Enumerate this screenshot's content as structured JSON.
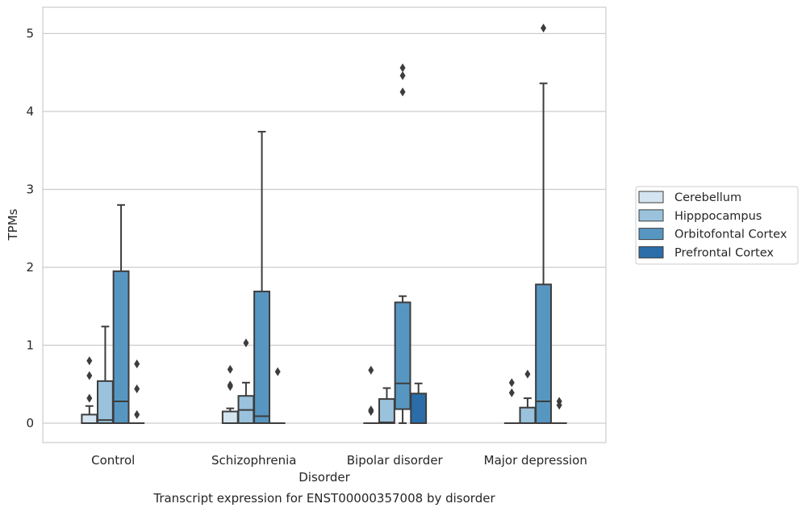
{
  "chart_data": {
    "type": "box",
    "title": "",
    "caption": "Transcript expression for ENST00000357008 by disorder",
    "xlabel": "Disorder",
    "ylabel": "TPMs",
    "ylim": [
      -0.25,
      5.35
    ],
    "yticks": [
      0,
      1,
      2,
      3,
      4,
      5
    ],
    "grid": true,
    "legend_position": "right",
    "categories": [
      "Control",
      "Schizophrenia",
      "Bipolar disorder",
      "Major depression"
    ],
    "series": [
      {
        "name": "Cerebellum",
        "color": "#d4e4f1",
        "boxes": [
          {
            "q1": 0,
            "median": 0,
            "q3": 0.11,
            "whisker_low": 0,
            "whisker_high": 0.22,
            "outliers": [
              0.32,
              0.61,
              0.8
            ]
          },
          {
            "q1": 0,
            "median": 0,
            "q3": 0.15,
            "whisker_low": 0,
            "whisker_high": 0.19,
            "outliers": [
              0.47,
              0.49,
              0.69
            ]
          },
          {
            "q1": 0,
            "median": 0,
            "q3": 0,
            "whisker_low": 0,
            "whisker_high": 0,
            "outliers": [
              0.15,
              0.17,
              0.68
            ]
          },
          {
            "q1": 0,
            "median": 0,
            "q3": 0,
            "whisker_low": 0,
            "whisker_high": 0,
            "outliers": [
              0.39,
              0.52
            ]
          }
        ]
      },
      {
        "name": "Hipppocampus",
        "color": "#9ac2dc",
        "boxes": [
          {
            "q1": 0,
            "median": 0.04,
            "q3": 0.54,
            "whisker_low": 0,
            "whisker_high": 1.24,
            "outliers": []
          },
          {
            "q1": 0,
            "median": 0.17,
            "q3": 0.35,
            "whisker_low": 0,
            "whisker_high": 0.52,
            "outliers": [
              1.03
            ]
          },
          {
            "q1": 0,
            "median": 0.01,
            "q3": 0.31,
            "whisker_low": 0,
            "whisker_high": 0.45,
            "outliers": []
          },
          {
            "q1": 0,
            "median": 0,
            "q3": 0.2,
            "whisker_low": 0,
            "whisker_high": 0.32,
            "outliers": [
              0.63
            ]
          }
        ]
      },
      {
        "name": "Orbitofontal Cortex",
        "color": "#5896c2",
        "boxes": [
          {
            "q1": 0,
            "median": 0.28,
            "q3": 1.95,
            "whisker_low": 0,
            "whisker_high": 2.8,
            "outliers": []
          },
          {
            "q1": 0,
            "median": 0.09,
            "q3": 1.69,
            "whisker_low": 0,
            "whisker_high": 3.74,
            "outliers": []
          },
          {
            "q1": 0.18,
            "median": 0.51,
            "q3": 1.55,
            "whisker_low": 0,
            "whisker_high": 1.63,
            "outliers": [
              4.25,
              4.46,
              4.56
            ]
          },
          {
            "q1": 0,
            "median": 0.28,
            "q3": 1.78,
            "whisker_low": 0,
            "whisker_high": 4.36,
            "outliers": [
              5.07
            ]
          }
        ]
      },
      {
        "name": "Prefrontal Cortex",
        "color": "#2b6da8",
        "boxes": [
          {
            "q1": 0,
            "median": 0,
            "q3": 0,
            "whisker_low": 0,
            "whisker_high": 0,
            "outliers": [
              0.11,
              0.44,
              0.76
            ]
          },
          {
            "q1": 0,
            "median": 0,
            "q3": 0,
            "whisker_low": 0,
            "whisker_high": 0,
            "outliers": [
              0.66
            ]
          },
          {
            "q1": 0,
            "median": 0,
            "q3": 0.38,
            "whisker_low": 0,
            "whisker_high": 0.51,
            "outliers": []
          },
          {
            "q1": 0,
            "median": 0,
            "q3": 0,
            "whisker_low": 0,
            "whisker_high": 0,
            "outliers": [
              0.23,
              0.28
            ]
          }
        ]
      }
    ]
  }
}
